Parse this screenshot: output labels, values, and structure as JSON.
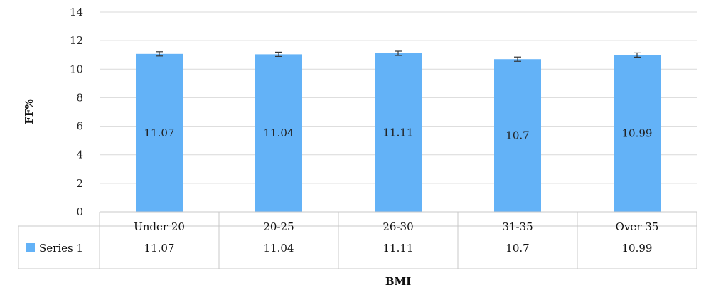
{
  "chart_data": {
    "type": "bar",
    "categories": [
      "Under 20",
      "20-25",
      "26-30",
      "31-35",
      "Over 35"
    ],
    "series": [
      {
        "name": "Series 1",
        "values": [
          11.07,
          11.04,
          11.11,
          10.7,
          10.99
        ]
      }
    ],
    "error_bars": true,
    "ylabel": "FF%",
    "xlabel": "BMI",
    "ylim": [
      0,
      14
    ],
    "yticks": [
      "0",
      "2",
      "4",
      "6",
      "8",
      "10",
      "12",
      "14"
    ],
    "grid": true,
    "data_table": true,
    "bar_color": "#63b2f7",
    "grid_color": "#d9d9d9"
  }
}
